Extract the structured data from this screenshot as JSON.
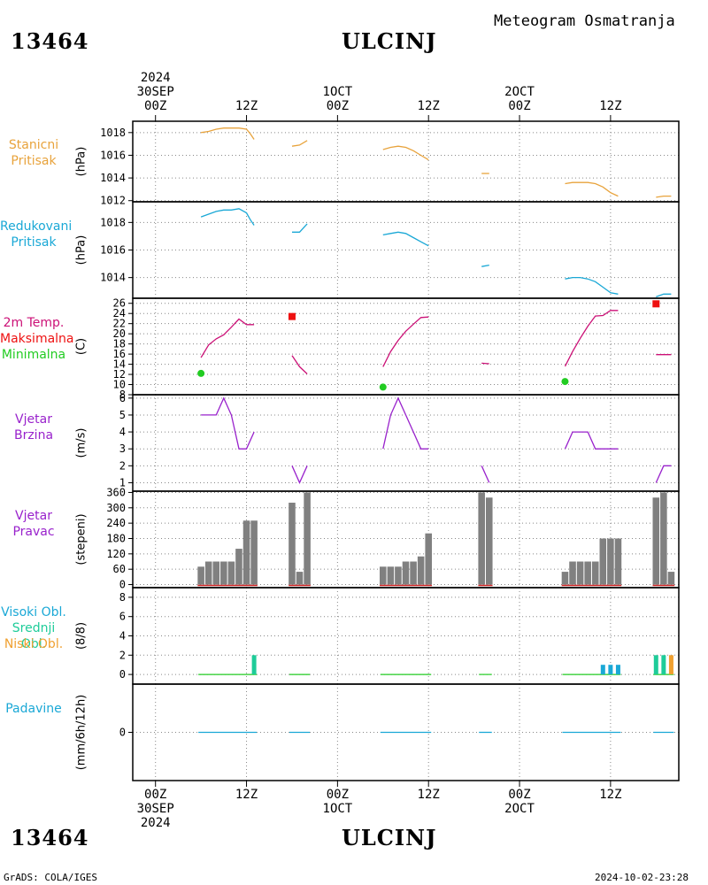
{
  "header": {
    "station_id": "13464",
    "city": "ULCINJ",
    "title": "Meteogram Osmatranja",
    "top_time_labels": [
      {
        "line1": "2024",
        "line2": "30SEP",
        "line3": "00Z"
      },
      {
        "line1": "",
        "line2": "",
        "line3": "12Z"
      },
      {
        "line1": "",
        "line2": "1OCT",
        "line3": "00Z"
      },
      {
        "line1": "",
        "line2": "",
        "line3": "12Z"
      },
      {
        "line1": "",
        "line2": "2OCT",
        "line3": "00Z"
      },
      {
        "line1": "",
        "line2": "",
        "line3": "12Z"
      }
    ]
  },
  "footer": {
    "station_id": "13464",
    "city": "ULCINJ",
    "credit": "GrADS: COLA/IGES",
    "timestamp": "2024-10-02-23:28",
    "bottom_time_labels": [
      {
        "line1": "00Z",
        "line2": "30SEP",
        "line3": "2024"
      },
      {
        "line1": "12Z",
        "line2": "",
        "line3": ""
      },
      {
        "line1": "00Z",
        "line2": "1OCT",
        "line3": ""
      },
      {
        "line1": "12Z",
        "line2": "",
        "line3": ""
      },
      {
        "line1": "00Z",
        "line2": "2OCT",
        "line3": ""
      },
      {
        "line1": "12Z",
        "line2": "",
        "line3": ""
      }
    ]
  },
  "colors": {
    "station_pressure": "#e8a33c",
    "reduced_pressure": "#1aa8d6",
    "tmax": "#ee1111",
    "tmin": "#22cc22",
    "temp_line": "#cc1177",
    "wind": "#9922cc",
    "bars": "#808080",
    "dir_base": "#cc2222",
    "cloud_high": "#1aa8d6",
    "cloud_mid": "#1ecc99",
    "cloud_low": "#f0a030",
    "precip": "#1aa8d6"
  },
  "panels": {
    "station_pressure": {
      "label_lines": [
        "Stanicni",
        "Pritisak"
      ],
      "unit": "(hPa)"
    },
    "reduced_pressure": {
      "label_lines": [
        "Redukovani",
        "Pritisak"
      ],
      "unit": "(hPa)"
    },
    "temperature": {
      "label_lines": [
        "2m Temp.",
        "Maksimalna",
        "Minimalna"
      ],
      "unit": "(C)"
    },
    "wind_speed": {
      "label_lines": [
        "Vjetar",
        "Brzina"
      ],
      "unit": "(m/s)"
    },
    "wind_direction": {
      "label_lines": [
        "Vjetar",
        "Pravac"
      ],
      "unit": "(stepeni)"
    },
    "clouds": {
      "label_lines": [
        "Visoki Obl.",
        "Srednji Obl.",
        "Niski Obl."
      ],
      "unit": "(8/8)"
    },
    "precip": {
      "label_lines": [
        "Padavine"
      ],
      "unit": "(mm/6h/12h)"
    }
  },
  "chart_data": [
    {
      "type": "line",
      "name": "station_pressure",
      "x_unit": "hours since 30SEP 00Z",
      "xlim": [
        -3,
        69
      ],
      "ylim": [
        1011.9,
        1019.0
      ],
      "yticks": [
        1012,
        1014,
        1016,
        1018
      ],
      "segments": [
        [
          [
            6,
            1018.0
          ],
          [
            7,
            1018.1
          ],
          [
            8,
            1018.3
          ],
          [
            9,
            1018.4
          ],
          [
            10,
            1018.4
          ],
          [
            11,
            1018.4
          ],
          [
            12,
            1018.3
          ],
          [
            12.5,
            1017.9
          ],
          [
            13,
            1017.4
          ]
        ],
        [
          [
            18,
            1016.8
          ],
          [
            19,
            1016.9
          ],
          [
            20,
            1017.3
          ]
        ],
        [
          [
            30,
            1016.5
          ],
          [
            31,
            1016.7
          ],
          [
            32,
            1016.8
          ],
          [
            33,
            1016.7
          ],
          [
            34,
            1016.4
          ],
          [
            35,
            1016.0
          ],
          [
            36,
            1015.6
          ]
        ],
        [
          [
            43,
            1014.4
          ],
          [
            44,
            1014.4
          ]
        ],
        [
          [
            54,
            1013.5
          ],
          [
            55,
            1013.6
          ],
          [
            56,
            1013.6
          ],
          [
            57,
            1013.6
          ],
          [
            58,
            1013.5
          ],
          [
            59,
            1013.2
          ],
          [
            60,
            1012.7
          ],
          [
            61,
            1012.4
          ]
        ],
        [
          [
            66,
            1012.3
          ],
          [
            67,
            1012.4
          ],
          [
            68,
            1012.4
          ]
        ]
      ]
    },
    {
      "type": "line",
      "name": "reduced_pressure",
      "x_unit": "hours since 30SEP 00Z",
      "xlim": [
        -3,
        69
      ],
      "ylim": [
        1012.5,
        1019.5
      ],
      "yticks": [
        1014,
        1016,
        1018
      ],
      "segments": [
        [
          [
            6,
            1018.4
          ],
          [
            7,
            1018.6
          ],
          [
            8,
            1018.8
          ],
          [
            9,
            1018.9
          ],
          [
            10,
            1018.9
          ],
          [
            11,
            1019.0
          ],
          [
            12,
            1018.7
          ],
          [
            12.5,
            1018.2
          ],
          [
            13,
            1017.8
          ]
        ],
        [
          [
            18,
            1017.3
          ],
          [
            19,
            1017.3
          ],
          [
            20,
            1017.9
          ]
        ],
        [
          [
            30,
            1017.1
          ],
          [
            31,
            1017.2
          ],
          [
            32,
            1017.3
          ],
          [
            33,
            1017.2
          ],
          [
            34,
            1016.9
          ],
          [
            35,
            1016.6
          ],
          [
            36,
            1016.3
          ]
        ],
        [
          [
            43,
            1014.8
          ],
          [
            44,
            1014.9
          ]
        ],
        [
          [
            54,
            1013.9
          ],
          [
            55,
            1014.0
          ],
          [
            56,
            1014.0
          ],
          [
            57,
            1013.9
          ],
          [
            58,
            1013.7
          ],
          [
            59,
            1013.3
          ],
          [
            60,
            1012.9
          ],
          [
            61,
            1012.8
          ]
        ],
        [
          [
            66,
            1012.6
          ],
          [
            67,
            1012.8
          ],
          [
            68,
            1012.8
          ]
        ]
      ]
    },
    {
      "type": "line",
      "name": "temperature",
      "x_unit": "hours since 30SEP 00Z",
      "xlim": [
        -3,
        69
      ],
      "ylim": [
        8,
        27
      ],
      "yticks": [
        8,
        10,
        12,
        14,
        16,
        18,
        20,
        22,
        24,
        26
      ],
      "segments": [
        [
          [
            6,
            15.3
          ],
          [
            7,
            17.8
          ],
          [
            8,
            19.0
          ],
          [
            9,
            19.8
          ],
          [
            10,
            21.3
          ],
          [
            11,
            22.9
          ],
          [
            12,
            21.8
          ],
          [
            13,
            21.8
          ]
        ],
        [
          [
            18,
            15.7
          ],
          [
            19,
            13.5
          ],
          [
            20,
            12.1
          ]
        ],
        [
          [
            30,
            13.5
          ],
          [
            31,
            16.5
          ],
          [
            32,
            18.7
          ],
          [
            33,
            20.5
          ],
          [
            34,
            21.9
          ],
          [
            35,
            23.2
          ],
          [
            36,
            23.3
          ]
        ],
        [
          [
            43,
            14.2
          ],
          [
            44,
            14.1
          ]
        ],
        [
          [
            54,
            13.6
          ],
          [
            55,
            16.5
          ],
          [
            56,
            19.1
          ],
          [
            57,
            21.5
          ],
          [
            58,
            23.5
          ],
          [
            59,
            23.6
          ],
          [
            60,
            24.6
          ],
          [
            61,
            24.6
          ]
        ],
        [
          [
            66,
            15.9
          ],
          [
            67,
            15.9
          ],
          [
            68,
            15.9
          ]
        ]
      ],
      "max_points": [
        [
          18,
          23.4
        ],
        [
          66,
          25.9
        ]
      ],
      "min_points": [
        [
          6,
          12.2
        ],
        [
          30,
          9.5
        ],
        [
          54,
          10.6
        ]
      ]
    },
    {
      "type": "line",
      "name": "wind_speed",
      "x_unit": "hours since 30SEP 00Z",
      "xlim": [
        -3,
        69
      ],
      "ylim": [
        0.5,
        6.2
      ],
      "yticks": [
        1,
        2,
        3,
        4,
        5,
        6
      ],
      "segments": [
        [
          [
            6,
            5
          ],
          [
            7,
            5
          ],
          [
            8,
            5
          ],
          [
            9,
            6
          ],
          [
            10,
            5
          ],
          [
            11,
            3
          ],
          [
            12,
            3
          ],
          [
            13,
            4
          ]
        ],
        [
          [
            18,
            2
          ],
          [
            19,
            1
          ],
          [
            20,
            2
          ]
        ],
        [
          [
            30,
            3
          ],
          [
            31,
            5
          ],
          [
            32,
            6
          ],
          [
            33,
            5
          ],
          [
            34,
            4
          ],
          [
            35,
            3
          ],
          [
            36,
            3
          ]
        ],
        [
          [
            43,
            2
          ],
          [
            44,
            1
          ]
        ],
        [
          [
            54,
            3
          ],
          [
            55,
            4
          ],
          [
            56,
            4
          ],
          [
            57,
            4
          ],
          [
            58,
            3
          ],
          [
            59,
            3
          ],
          [
            60,
            3
          ],
          [
            61,
            3
          ]
        ],
        [
          [
            66,
            1
          ],
          [
            67,
            2
          ],
          [
            68,
            2
          ]
        ]
      ]
    },
    {
      "type": "bar",
      "name": "wind_direction",
      "x_unit": "hours since 30SEP 00Z",
      "xlim": [
        -3,
        69
      ],
      "ylim": [
        -12,
        365
      ],
      "yticks": [
        0,
        60,
        120,
        180,
        240,
        300,
        360
      ],
      "x": [
        6,
        7,
        8,
        9,
        10,
        11,
        12,
        13,
        18,
        19,
        20,
        30,
        31,
        32,
        33,
        34,
        35,
        36,
        43,
        44,
        54,
        55,
        56,
        57,
        58,
        59,
        60,
        61,
        66,
        67,
        68
      ],
      "values": [
        70,
        90,
        90,
        90,
        90,
        140,
        250,
        250,
        320,
        50,
        360,
        70,
        70,
        70,
        90,
        90,
        110,
        200,
        360,
        340,
        50,
        90,
        90,
        90,
        90,
        180,
        180,
        180,
        340,
        360,
        50
      ]
    },
    {
      "type": "bar",
      "name": "clouds",
      "x_unit": "hours since 30SEP 00Z",
      "xlim": [
        -3,
        69
      ],
      "ylim": [
        -1,
        9
      ],
      "yticks": [
        0,
        2,
        4,
        6,
        8
      ],
      "series": [
        {
          "name": "Visoki Obl.",
          "points": [
            [
              59,
              1
            ],
            [
              60,
              1
            ],
            [
              61,
              1
            ]
          ]
        },
        {
          "name": "Srednji Obl.",
          "points": [
            [
              13,
              2
            ],
            [
              66,
              2
            ],
            [
              67,
              2
            ]
          ]
        },
        {
          "name": "Niski Obl.",
          "points": [
            [
              68,
              2
            ]
          ]
        }
      ],
      "zero_segments": [
        [
          6,
          13
        ],
        [
          18,
          20
        ],
        [
          30,
          36
        ],
        [
          43,
          44
        ],
        [
          54,
          61
        ],
        [
          66,
          68
        ]
      ]
    },
    {
      "type": "bar",
      "name": "precip",
      "x_unit": "hours since 30SEP 00Z",
      "xlim": [
        -3,
        69
      ],
      "ylim": [
        -1,
        1
      ],
      "yticks": [
        0
      ],
      "zero_segments": [
        [
          6,
          13
        ],
        [
          18,
          20
        ],
        [
          30,
          36
        ],
        [
          43,
          44
        ],
        [
          54,
          61
        ],
        [
          66,
          68
        ]
      ]
    }
  ]
}
